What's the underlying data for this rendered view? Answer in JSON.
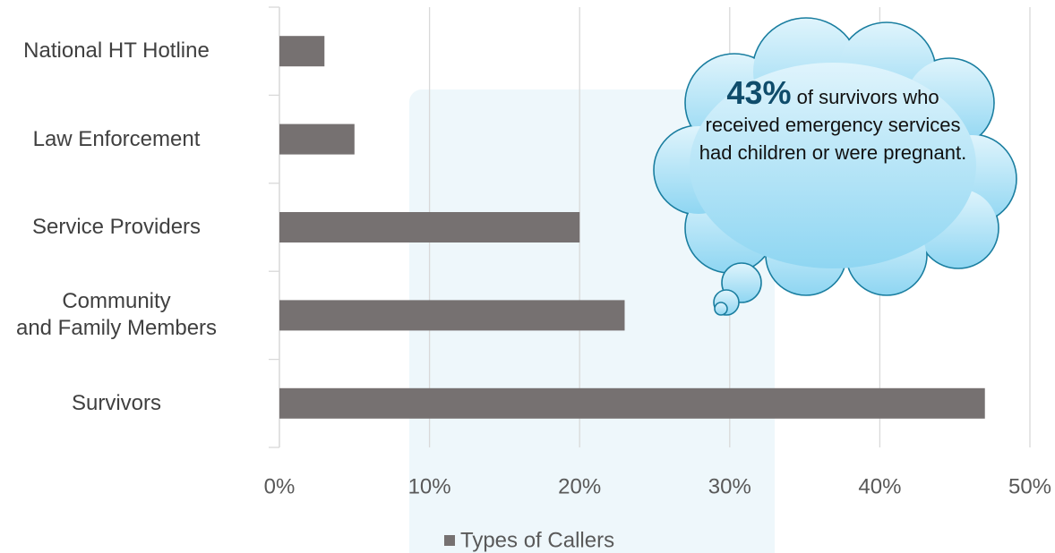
{
  "chart_data": {
    "type": "bar",
    "orientation": "horizontal",
    "categories": [
      "National HT Hotline",
      "Law Enforcement",
      "Service Providers",
      "Community\nand Family Members",
      "Survivors"
    ],
    "series": [
      {
        "name": "Types of Callers",
        "color": "#767171",
        "values": [
          3,
          5,
          20,
          23,
          47
        ]
      }
    ],
    "xlim": [
      0,
      50
    ],
    "xticks": [
      {
        "value": 0,
        "label": "0%"
      },
      {
        "value": 10,
        "label": "10%"
      },
      {
        "value": 20,
        "label": "20%"
      },
      {
        "value": 30,
        "label": "30%"
      },
      {
        "value": 40,
        "label": "40%"
      },
      {
        "value": 50,
        "label": "50%"
      }
    ],
    "grid": true,
    "legend": "bottom",
    "annotation": {
      "highlight": "43%",
      "text": "of survivors who received emergency services had children or were pregnant."
    }
  }
}
